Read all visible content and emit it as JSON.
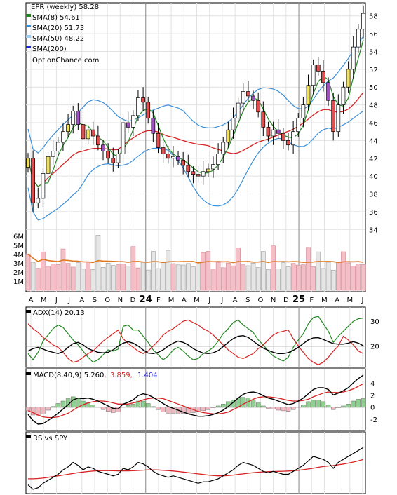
{
  "colors": {
    "sma8": "#228822",
    "sma20": "#2b8bd6",
    "sma50": "#99ccf2",
    "sma200": "#2222cc",
    "bb": "#3a8fd8",
    "sma50line": "#d62222",
    "sar": "#e8e060",
    "vol_up": "#f4c0c8",
    "vol_down": "#e6e6e6",
    "vol_ma": "#e07820",
    "adx": "#000000",
    "pdi": "#228822",
    "mdi": "#d62222",
    "macd": "#000000",
    "signal": "#d62222",
    "hist": "#228822",
    "rs": "#000000",
    "rs_ma": "#d62222"
  },
  "price_legend": {
    "title": "EPR (weekly) 58.28",
    "sma8": "SMA(8) 54.61",
    "sma20": "SMA(20) 51.73",
    "sma50": "SMA(50) 48.22",
    "sma200": "SMA(200)",
    "brand": "OptionChance.com"
  },
  "adx_legend": {
    "label": "ADX(14) 20.13"
  },
  "macd_legend": {
    "label": "MACD(8,40,9) 5.260,",
    "v2": "3.859,",
    "v3": "1.404"
  },
  "rs_legend": {
    "label": "RS vs SPY"
  },
  "chart_data": [
    {
      "type": "candlestick",
      "title": "EPR (weekly) 58.28",
      "x_ticks": [
        "A",
        "M",
        "J",
        "J",
        "A",
        "S",
        "O",
        "N",
        "D",
        "24",
        "F",
        "M",
        "A",
        "M",
        "J",
        "J",
        "A",
        "S",
        "O",
        "N",
        "D",
        "25",
        "F",
        "M",
        "A",
        "M",
        "J"
      ],
      "y_ticks": [
        34,
        36,
        38,
        40,
        42,
        44,
        46,
        48,
        50,
        52,
        54,
        56,
        58
      ],
      "ylim": [
        33,
        59
      ],
      "close": [
        42.0,
        37.0,
        37.5,
        40.3,
        42.2,
        42.8,
        43.8,
        45.0,
        45.8,
        47.3,
        45.8,
        44.2,
        45.2,
        44.5,
        43.5,
        42.8,
        42.0,
        41.5,
        42.5,
        46.0,
        45.5,
        46.8,
        48.8,
        48.3,
        46.5,
        44.8,
        43.2,
        42.5,
        42.0,
        42.2,
        41.8,
        41.2,
        40.5,
        40.2,
        40.0,
        40.5,
        40.8,
        41.3,
        42.5,
        43.8,
        45.2,
        46.5,
        48.2,
        49.5,
        49.0,
        48.5,
        47.2,
        45.5,
        44.5,
        45.2,
        44.8,
        44.0,
        43.5,
        45.0,
        46.5,
        48.0,
        50.2,
        52.5,
        51.8,
        50.5,
        48.5,
        45.0,
        48.0,
        50.0,
        52.0,
        54.5,
        56.5,
        58.28
      ],
      "volume_ylim": [
        0,
        6.5
      ],
      "volume_ticks": [
        "1M",
        "2M",
        "3M",
        "4M",
        "5M",
        "6M"
      ]
    },
    {
      "type": "line",
      "title": "ADX(14) 20.13",
      "ylim": [
        12,
        34
      ],
      "y_ticks": [
        20,
        30
      ],
      "series": [
        {
          "name": "ADX",
          "values": [
            18,
            19,
            19.5,
            18.8,
            18,
            17.5,
            17,
            17.8,
            19.5,
            21,
            21.5,
            20.5,
            19,
            18.2,
            17.5,
            17.3,
            17.5,
            18.5,
            20,
            21.2,
            21.8,
            21.2,
            20,
            18.5,
            17.2,
            17,
            17.5,
            18.5,
            20,
            21.2,
            22,
            21.5,
            20.5,
            19,
            18,
            17.2,
            17,
            17.3,
            18.2,
            19.8,
            21.5,
            23,
            24,
            24.2,
            23.5,
            22,
            20.5,
            19.2,
            18.3,
            17.5,
            17,
            17,
            17.4,
            18.3,
            19.5,
            21,
            22.5,
            23.3,
            23.4,
            22.7,
            21.8,
            21,
            20.8,
            20.8,
            21.2,
            21.8,
            21.2,
            20.13
          ]
        },
        {
          "name": "+DI",
          "values": [
            17,
            14.5,
            17.5,
            22,
            24.5,
            27,
            28.5,
            27.5,
            25,
            22.5,
            20.5,
            18,
            15.5,
            13.5,
            14.5,
            16.5,
            18.5,
            18,
            18.8,
            28,
            28.5,
            26.5,
            26.5,
            24,
            21.5,
            18.5,
            16.5,
            14.5,
            16,
            18.5,
            19.5,
            18,
            16,
            14.5,
            15,
            17,
            18,
            19.5,
            22,
            25,
            27,
            29.5,
            30.5,
            28.5,
            27,
            25.5,
            22.5,
            20.5,
            18,
            16,
            15,
            14,
            15.5,
            19.5,
            22.5,
            25,
            29,
            31.5,
            32,
            29,
            26,
            21.5,
            24,
            26,
            28,
            30,
            31,
            31.3
          ]
        },
        {
          "name": "-DI",
          "values": [
            29,
            27,
            25.5,
            23.5,
            22,
            20.5,
            19.5,
            17.5,
            15,
            13.5,
            14,
            15.5,
            17,
            18,
            20,
            22,
            23.5,
            25,
            26.5,
            23,
            21,
            19.5,
            18,
            17,
            18,
            20,
            22,
            24.5,
            26,
            27,
            28.5,
            30,
            30.5,
            29.5,
            28.5,
            27,
            26,
            24.5,
            22.5,
            20.5,
            18.5,
            17,
            15.5,
            15,
            16,
            17,
            19,
            20.5,
            22.5,
            24.5,
            25.5,
            26,
            26.5,
            23,
            20,
            17.5,
            15,
            13.5,
            12.5,
            13.5,
            15.5,
            18,
            20,
            24,
            22.5,
            20.5,
            18,
            17
          ]
        }
      ]
    },
    {
      "type": "line",
      "title": "MACD(8,40,9) 5.260, 3.859, 1.404",
      "ylim": [
        -3.6,
        5.6
      ],
      "y_ticks": [
        -2,
        0,
        2,
        4
      ],
      "series": [
        {
          "name": "MACD",
          "values": [
            -1.2,
            -2.2,
            -2.8,
            -2.7,
            -2.2,
            -1.6,
            -1.0,
            -0.3,
            0.4,
            1.2,
            1.5,
            1.4,
            1.5,
            1.3,
            1.0,
            0.6,
            0.2,
            -0.2,
            -0.3,
            0.5,
            0.8,
            1.2,
            1.9,
            2.2,
            2.0,
            1.6,
            1.1,
            0.6,
            0.1,
            -0.2,
            -0.5,
            -0.8,
            -1.1,
            -1.3,
            -1.5,
            -1.5,
            -1.4,
            -1.2,
            -0.9,
            -0.5,
            0.1,
            0.8,
            1.5,
            2.1,
            2.4,
            2.5,
            2.3,
            1.9,
            1.5,
            1.3,
            1.0,
            0.7,
            0.4,
            0.6,
            1.0,
            1.5,
            2.2,
            2.9,
            3.2,
            3.2,
            2.9,
            2.0,
            2.3,
            2.7,
            3.2,
            4.0,
            4.7,
            5.26
          ]
        },
        {
          "name": "Signal",
          "values": [
            -0.6,
            -0.9,
            -1.3,
            -1.6,
            -1.7,
            -1.7,
            -1.6,
            -1.3,
            -1.0,
            -0.5,
            0.0,
            0.4,
            0.7,
            0.9,
            1.0,
            1.0,
            0.9,
            0.7,
            0.5,
            0.5,
            0.5,
            0.7,
            0.9,
            1.2,
            1.4,
            1.5,
            1.5,
            1.4,
            1.1,
            0.8,
            0.5,
            0.2,
            -0.1,
            -0.4,
            -0.7,
            -0.9,
            -1.0,
            -1.1,
            -1.1,
            -1.0,
            -0.8,
            -0.4,
            0.0,
            0.5,
            0.9,
            1.3,
            1.6,
            1.7,
            1.7,
            1.6,
            1.5,
            1.3,
            1.1,
            1.0,
            1.0,
            1.1,
            1.3,
            1.7,
            2.0,
            2.3,
            2.5,
            2.4,
            2.4,
            2.5,
            2.7,
            3.0,
            3.4,
            3.859
          ]
        },
        {
          "name": "Histogram",
          "values": [
            -0.6,
            -1.3,
            -1.5,
            -1.1,
            -0.5,
            0.1,
            0.6,
            1.0,
            1.4,
            1.7,
            1.5,
            1.0,
            0.8,
            0.4,
            0.0,
            -0.4,
            -0.7,
            -0.9,
            -0.8,
            0.0,
            0.3,
            0.5,
            1.0,
            1.0,
            0.6,
            0.1,
            -0.4,
            -0.8,
            -1.0,
            -1.0,
            -1.0,
            -1.0,
            -1.0,
            -0.9,
            -0.8,
            -0.6,
            -0.4,
            -0.1,
            0.2,
            0.5,
            0.9,
            1.2,
            1.5,
            1.6,
            1.5,
            1.2,
            0.7,
            0.2,
            -0.2,
            -0.3,
            -0.5,
            -0.6,
            -0.7,
            -0.4,
            0.0,
            0.4,
            0.9,
            1.2,
            1.2,
            0.9,
            0.4,
            -0.4,
            -0.1,
            0.2,
            0.5,
            1.0,
            1.3,
            1.404
          ]
        }
      ]
    },
    {
      "type": "line",
      "title": "RS vs SPY",
      "series": [
        {
          "name": "RS",
          "values": [
            5,
            2,
            3,
            6,
            8,
            10,
            12,
            15,
            17,
            20,
            18,
            15,
            17,
            16,
            14,
            13,
            12,
            11,
            12,
            16,
            15,
            17,
            20,
            19,
            17,
            14,
            12,
            11,
            10,
            11,
            10,
            9,
            8,
            7,
            6,
            7,
            7,
            8,
            9,
            11,
            13,
            15,
            18,
            20,
            19,
            18,
            16,
            14,
            13,
            14,
            13,
            12,
            12,
            14,
            16,
            18,
            21,
            24,
            23,
            22,
            20,
            16,
            20,
            22,
            24,
            26,
            28,
            30
          ]
        },
        {
          "name": "RS MA",
          "values": [
            9,
            9,
            9.2,
            9.5,
            10,
            10.5,
            11,
            11.5,
            12,
            12.6,
            13.1,
            13.5,
            13.9,
            14.2,
            14.4,
            14.5,
            14.5,
            14.4,
            14.3,
            14.3,
            14.3,
            14.4,
            14.6,
            14.8,
            15.0,
            15.0,
            14.9,
            14.7,
            14.5,
            14.2,
            13.9,
            13.5,
            13.1,
            12.7,
            12.3,
            11.9,
            11.5,
            11.2,
            11.0,
            11.0,
            11.2,
            11.5,
            11.9,
            12.3,
            12.7,
            13.1,
            13.4,
            13.6,
            13.8,
            13.9,
            14.0,
            14.1,
            14.2,
            14.4,
            14.7,
            15.1,
            15.6,
            16.1,
            16.7,
            17.2,
            17.6,
            17.9,
            18.4,
            18.9,
            19.5,
            20.2,
            21.0,
            22.0
          ]
        }
      ]
    }
  ]
}
